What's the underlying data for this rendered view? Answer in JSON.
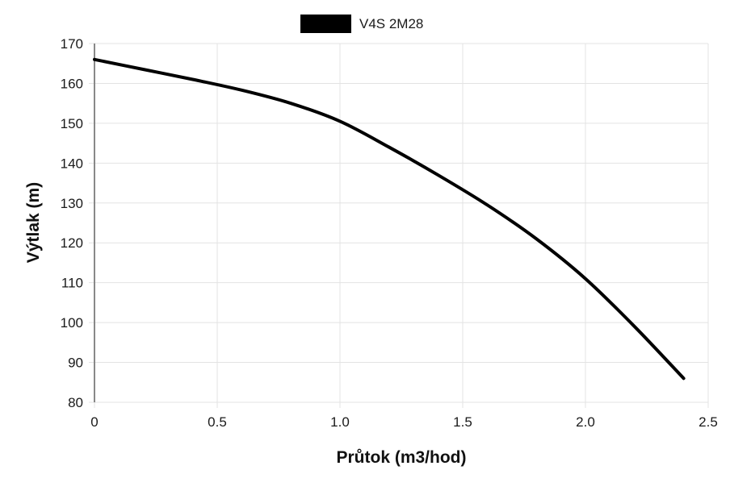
{
  "chart_data": {
    "type": "line",
    "title": "",
    "xlabel": "Průtok (m3/hod)",
    "ylabel": "Výtlak (m)",
    "xlim": [
      0,
      2.5
    ],
    "ylim": [
      80,
      170
    ],
    "x_ticks": [
      "0",
      "0.5",
      "1.0",
      "1.5",
      "2.0",
      "2.5"
    ],
    "y_ticks": [
      "80",
      "90",
      "100",
      "110",
      "120",
      "130",
      "140",
      "150",
      "160",
      "170"
    ],
    "grid": true,
    "legend_position": "top-center",
    "series": [
      {
        "name": "V4S 2M28",
        "color": "#000000",
        "x": [
          0,
          0.2,
          0.4,
          0.6,
          0.8,
          1.0,
          1.2,
          1.4,
          1.6,
          1.8,
          2.0,
          2.2,
          2.4
        ],
        "y": [
          166,
          163.5,
          161,
          158.3,
          155,
          150.5,
          144,
          137,
          129.5,
          121,
          111,
          99,
          86
        ]
      }
    ]
  }
}
